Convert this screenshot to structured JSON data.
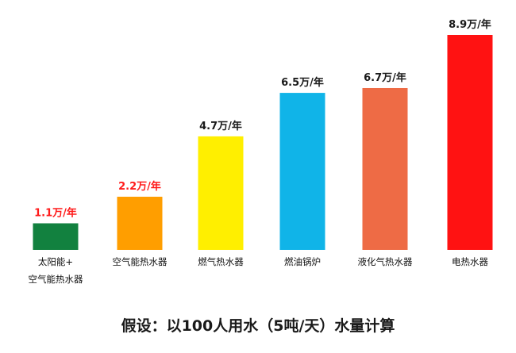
{
  "chart_data": {
    "type": "bar",
    "title": "",
    "xlabel": "",
    "ylabel": "",
    "unit": "万/年",
    "ylim": [
      0,
      8.9
    ],
    "grid": false,
    "legend": "none",
    "categories": [
      [
        "太阳能+",
        "空气能热水器"
      ],
      [
        "空气能热水器"
      ],
      [
        "燃气热水器"
      ],
      [
        "燃油锅炉"
      ],
      [
        "液化气热水器"
      ],
      [
        "电热水器"
      ]
    ],
    "values": [
      1.1,
      2.2,
      4.7,
      6.5,
      6.7,
      8.9
    ],
    "value_labels": [
      "1.1万/年",
      "2.2万/年",
      "4.7万/年",
      "6.5万/年",
      "6.7万/年",
      "8.9万/年"
    ],
    "bar_colors": [
      "#12813F",
      "#FF9E00",
      "#FFEF00",
      "#10B4E8",
      "#EE6B45",
      "#FF1212"
    ],
    "label_colors": [
      "#FF1A1A",
      "#FF1A1A",
      "#1A1A1A",
      "#1A1A1A",
      "#1A1A1A",
      "#1A1A1A"
    ]
  },
  "caption": "假设：以100人用水（5吨/天）水量计算"
}
